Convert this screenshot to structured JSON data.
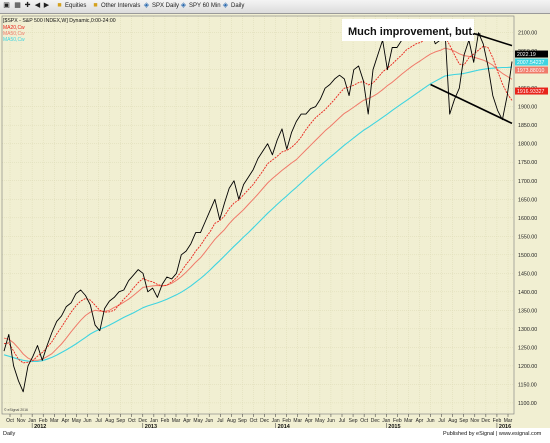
{
  "toolbar": {
    "items": [
      {
        "icon": "new-window-icon",
        "label": ""
      },
      {
        "icon": "grid-icon",
        "label": ""
      },
      {
        "icon": "crosshair-icon",
        "label": ""
      },
      {
        "icon": "back-arrow-icon",
        "label": ""
      },
      {
        "icon": "forward-arrow-icon",
        "label": ""
      },
      {
        "icon": "folder-icon",
        "label": "Equities"
      },
      {
        "icon": "folder-icon",
        "label": "Other Intervals"
      },
      {
        "icon": "chart-icon",
        "label": "SPX Daily"
      },
      {
        "icon": "chart-icon",
        "label": "SPY 60 Min"
      },
      {
        "icon": "chart-icon",
        "label": "Daily"
      }
    ]
  },
  "chart": {
    "header": "[$SPX - S&P 500 INDEX,W] Dynamic,0:00-24:00",
    "legend": [
      {
        "label": "MA20,Cw",
        "color": "#e8231b"
      },
      {
        "label": "MA50,Cw",
        "color": "#f07a6a"
      },
      {
        "label": "MA50,Cw",
        "color": "#3fd4e0"
      }
    ],
    "annotation": "Much improvement, but...",
    "watermark": "© eSignal 2016",
    "footer_left": "Daily",
    "footer_right": "Published by eSignal | www.esignal.com",
    "price_labels": [
      {
        "value": "2022.19",
        "bg": "#000000"
      },
      {
        "value": "2007.54237",
        "bg": "#3fd4e0"
      },
      {
        "value": "1973.88010",
        "bg": "#f07a6a"
      },
      {
        "value": "1916.93327",
        "bg": "#e8231b"
      }
    ]
  },
  "chart_data": {
    "type": "line",
    "ylim": [
      1070,
      2145
    ],
    "y_ticks": [
      1100,
      1150,
      1200,
      1250,
      1300,
      1350,
      1400,
      1450,
      1500,
      1550,
      1600,
      1650,
      1700,
      1750,
      1800,
      1850,
      1900,
      1950,
      2000,
      2050,
      2100
    ],
    "x_ticks": [
      "Oct",
      "Nov",
      "Jan",
      "Feb",
      "Mar",
      "Apr",
      "May",
      "Jun",
      "Jul",
      "Aug",
      "Sep",
      "Oct",
      "Dec",
      "Jan",
      "Feb",
      "Mar",
      "Apr",
      "May",
      "Jun",
      "Jul",
      "Aug",
      "Sep",
      "Oct",
      "Dec",
      "Jan",
      "Feb",
      "Mar",
      "Apr",
      "May",
      "Jun",
      "Jul",
      "Sep",
      "Oct",
      "Dec",
      "Jan",
      "Feb",
      "Mar",
      "Apr",
      "Jun",
      "Jul",
      "Aug",
      "Sep",
      "Nov",
      "Dec",
      "Feb",
      "Mar"
    ],
    "years": [
      "2012",
      "2013",
      "2014",
      "2015",
      "2016"
    ],
    "series": [
      {
        "name": "$SPX",
        "color": "#000000",
        "values": [
          1240,
          1285,
          1200,
          1160,
          1130,
          1200,
          1225,
          1255,
          1215,
          1255,
          1290,
          1320,
          1335,
          1360,
          1370,
          1395,
          1405,
          1390,
          1365,
          1310,
          1295,
          1355,
          1375,
          1385,
          1400,
          1405,
          1430,
          1445,
          1460,
          1450,
          1400,
          1410,
          1385,
          1420,
          1440,
          1435,
          1450,
          1500,
          1510,
          1530,
          1560,
          1560,
          1590,
          1620,
          1650,
          1595,
          1640,
          1680,
          1700,
          1650,
          1690,
          1710,
          1730,
          1760,
          1780,
          1800,
          1770,
          1810,
          1840,
          1785,
          1830,
          1860,
          1880,
          1880,
          1895,
          1900,
          1920,
          1950,
          1960,
          1975,
          1985,
          1975,
          1930,
          2000,
          2010,
          1970,
          1880,
          2000,
          2040,
          2080,
          2000,
          2060,
          2060,
          2080,
          2110,
          2090,
          2100,
          2110,
          2125,
          2110,
          2070,
          2080,
          2110,
          1880,
          1920,
          1950,
          2040,
          2080,
          2020,
          2100,
          2070,
          2010,
          1930,
          1890,
          1865,
          1930,
          2022
        ]
      },
      {
        "name": "MA20",
        "color": "#e8231b",
        "values": [
          1260,
          1262,
          1240,
          1218,
          1208,
          1210,
          1214,
          1226,
          1236,
          1250,
          1265,
          1286,
          1305,
          1325,
          1345,
          1362,
          1375,
          1382,
          1378,
          1364,
          1350,
          1345,
          1346,
          1350,
          1365,
          1380,
          1393,
          1410,
          1425,
          1436,
          1430,
          1427,
          1420,
          1416,
          1418,
          1427,
          1438,
          1455,
          1474,
          1490,
          1510,
          1525,
          1545,
          1562,
          1585,
          1592,
          1605,
          1625,
          1640,
          1648,
          1662,
          1676,
          1690,
          1708,
          1726,
          1746,
          1756,
          1766,
          1778,
          1782,
          1790,
          1802,
          1818,
          1838,
          1855,
          1870,
          1881,
          1892,
          1906,
          1920,
          1936,
          1950,
          1953,
          1958,
          1965,
          1968,
          1959,
          1964,
          1978,
          1994,
          2004,
          2015,
          2028,
          2040,
          2054,
          2062,
          2070,
          2074,
          2083,
          2090,
          2090,
          2087,
          2090,
          2066,
          2040,
          2015,
          2013,
          2032,
          2042,
          2053,
          2063,
          2060,
          2032,
          1996,
          1962,
          1935,
          1917
        ]
      },
      {
        "name": "MA50",
        "color": "#f07a6a",
        "values": [
          1275,
          1272,
          1262,
          1248,
          1232,
          1221,
          1215,
          1215,
          1218,
          1225,
          1233,
          1246,
          1259,
          1275,
          1292,
          1308,
          1323,
          1336,
          1345,
          1350,
          1348,
          1347,
          1350,
          1358,
          1364,
          1372,
          1380,
          1390,
          1401,
          1412,
          1414,
          1416,
          1417,
          1416,
          1418,
          1423,
          1431,
          1441,
          1453,
          1466,
          1480,
          1492,
          1508,
          1525,
          1542,
          1555,
          1568,
          1584,
          1598,
          1610,
          1622,
          1636,
          1650,
          1664,
          1679,
          1694,
          1706,
          1717,
          1728,
          1738,
          1748,
          1757,
          1770,
          1783,
          1796,
          1809,
          1822,
          1835,
          1846,
          1858,
          1870,
          1882,
          1890,
          1899,
          1908,
          1917,
          1922,
          1928,
          1936,
          1946,
          1957,
          1966,
          1977,
          1988,
          1998,
          2008,
          2017,
          2025,
          2034,
          2042,
          2048,
          2052,
          2058,
          2055,
          2050,
          2043,
          2038,
          2036,
          2034,
          2030,
          2026,
          2020,
          2012,
          2000,
          1990,
          1982,
          1974
        ]
      },
      {
        "name": "MA50b",
        "color": "#3fd4e0",
        "values": [
          1230,
          1226,
          1222,
          1218,
          1215,
          1213,
          1212,
          1212,
          1214,
          1218,
          1223,
          1229,
          1236,
          1243,
          1251,
          1259,
          1268,
          1277,
          1286,
          1293,
          1299,
          1304,
          1310,
          1317,
          1324,
          1331,
          1337,
          1343,
          1350,
          1357,
          1362,
          1366,
          1370,
          1375,
          1380,
          1386,
          1392,
          1399,
          1407,
          1416,
          1426,
          1436,
          1447,
          1459,
          1472,
          1484,
          1497,
          1510,
          1523,
          1535,
          1548,
          1560,
          1573,
          1586,
          1599,
          1612,
          1624,
          1636,
          1648,
          1659,
          1671,
          1682,
          1694,
          1706,
          1718,
          1729,
          1741,
          1752,
          1763,
          1774,
          1785,
          1796,
          1806,
          1816,
          1826,
          1836,
          1844,
          1853,
          1862,
          1871,
          1880,
          1890,
          1899,
          1908,
          1917,
          1926,
          1935,
          1944,
          1953,
          1962,
          1969,
          1976,
          1983,
          1985,
          1987,
          1988,
          1990,
          1993,
          1996,
          1999,
          2001,
          2003,
          2004,
          2005,
          2006,
          2006,
          2007
        ]
      }
    ],
    "channel": [
      {
        "from": [
          89,
          2135
        ],
        "to": [
          106,
          2065
        ]
      },
      {
        "from": [
          89,
          1960
        ],
        "to": [
          106,
          1855
        ]
      }
    ]
  }
}
